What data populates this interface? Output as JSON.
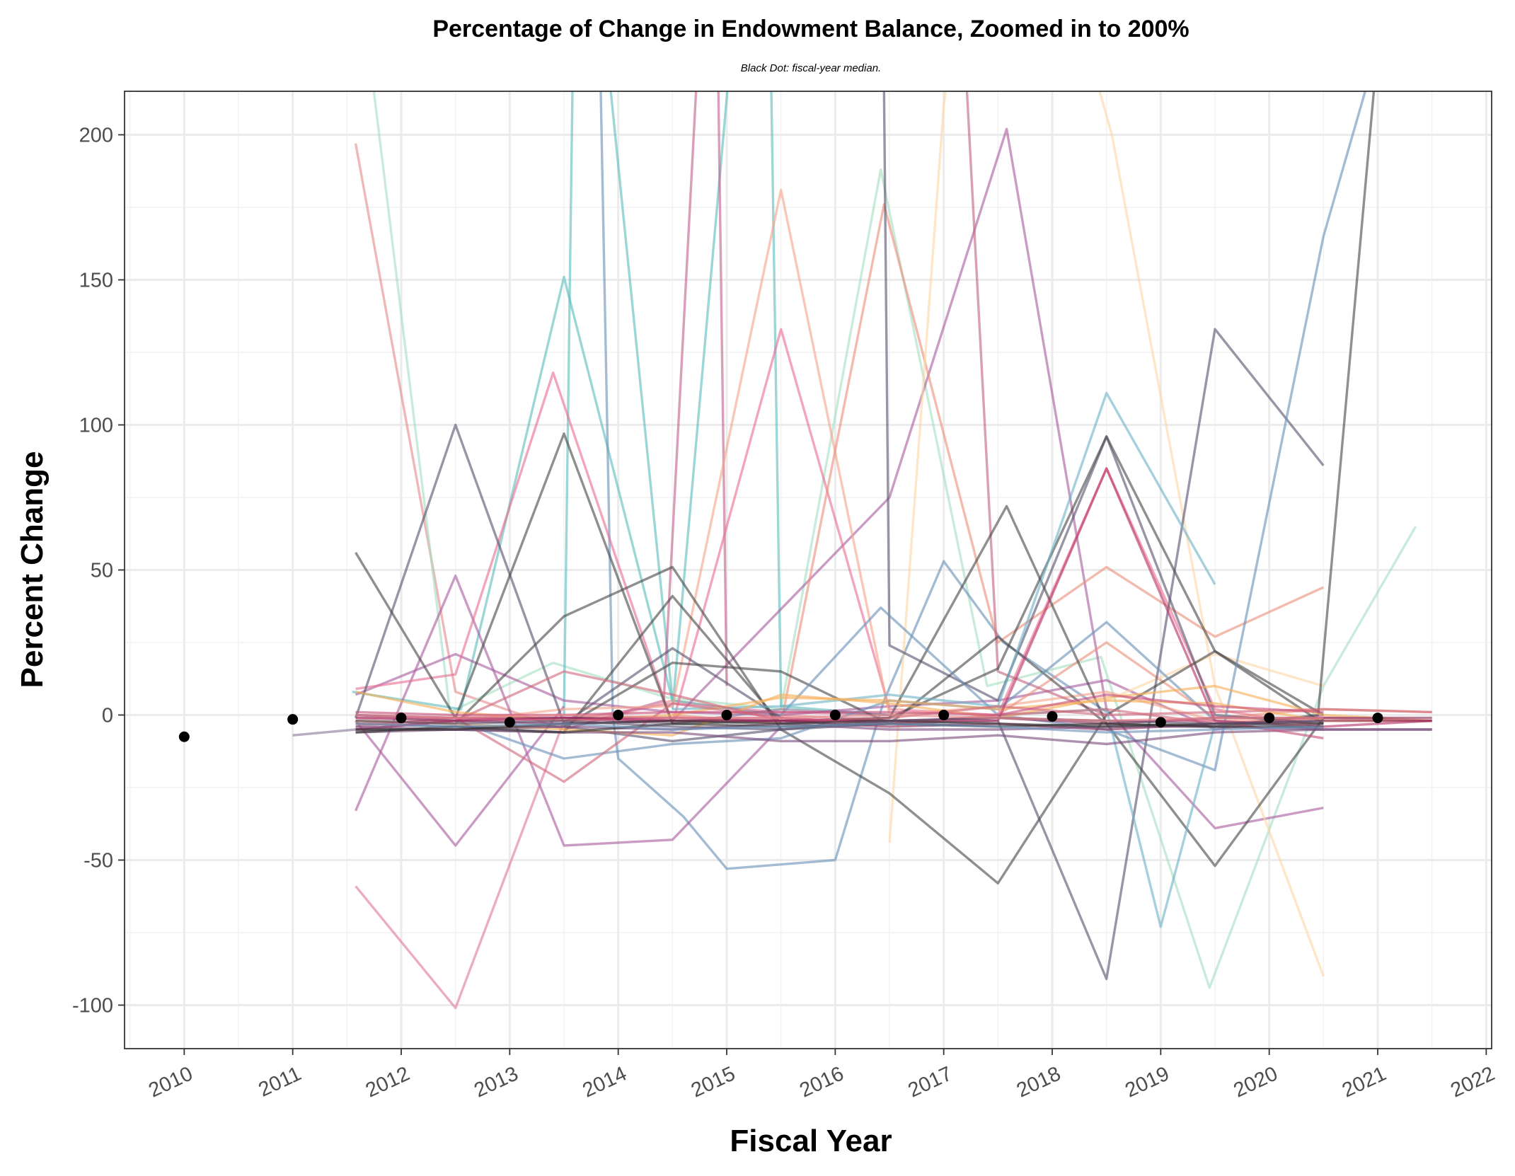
{
  "chart_data": {
    "type": "line",
    "title": "Percentage of Change in Endowment Balance, Zoomed in to 200%",
    "subtitle": "Black Dot: fiscal-year median.",
    "xlabel": "Fiscal Year",
    "ylabel": "Percent Change",
    "xlim": [
      2009.45,
      2022.05
    ],
    "ylim": [
      -115,
      215
    ],
    "x_ticks": [
      "2010",
      "2011",
      "2012",
      "2013",
      "2014",
      "2015",
      "2016",
      "2017",
      "2018",
      "2019",
      "2020",
      "2021",
      "2022"
    ],
    "y_ticks": [
      "-100",
      "-50",
      "0",
      "50",
      "100",
      "150",
      "200"
    ],
    "grid": true,
    "legend": "none",
    "median": {
      "x": [
        2010,
        2011,
        2012,
        2013,
        2014,
        2015,
        2016,
        2017,
        2018,
        2019,
        2020,
        2021
      ],
      "values": [
        -7.5,
        -1.5,
        -1,
        -2.5,
        0,
        0,
        0,
        0,
        -0.5,
        -2.5,
        -1,
        -1
      ]
    },
    "series": [
      {
        "color": "#e78a8e",
        "x": [
          2011.58,
          2012.5,
          2013.5,
          2014.5,
          2015.5,
          2016.5
        ],
        "values": [
          197,
          8,
          -5,
          5,
          0,
          -2
        ]
      },
      {
        "color": "#a8dfc3",
        "x": [
          2011.6,
          2012.45,
          2013.4,
          2014.45,
          2015.5,
          2016.42,
          2017.4,
          2018.45,
          2019.45,
          2020.5,
          2021.35
        ],
        "values": [
          260,
          1,
          18,
          6,
          2,
          188,
          10,
          20,
          -94,
          10,
          65
        ]
      },
      {
        "color": "#5fbdbd",
        "x": [
          2011.55,
          2012.55,
          2013.5,
          2014.5,
          2015.5
        ],
        "values": [
          8,
          2,
          151,
          5,
          0
        ]
      },
      {
        "color": "#5fbdbd",
        "x": [
          2013.5,
          2013.62,
          2014.5
        ],
        "values": [
          0,
          330,
          5
        ]
      },
      {
        "color": "#5fbdbd",
        "x": [
          2014.5,
          2015.35,
          2015.5,
          2016.5
        ],
        "values": [
          2,
          360,
          3,
          0
        ]
      },
      {
        "color": "#6b93b9",
        "x": [
          2013.78,
          2013.95,
          2014.0,
          2014.6,
          2015.0,
          2016.0,
          2016.45,
          2017.0,
          2017.55,
          2018.5
        ],
        "values": [
          330,
          0,
          -15,
          -35,
          -53,
          -50,
          5,
          53,
          25,
          1
        ]
      },
      {
        "color": "#de7b9a",
        "x": [
          2011.58,
          2012.5,
          2013.5,
          2014.5,
          2015.5,
          2016.5
        ],
        "values": [
          -59,
          -101,
          -2,
          4,
          1,
          0
        ]
      },
      {
        "color": "#a95f9f",
        "x": [
          2011.58,
          2012.5,
          2013.5,
          2014.5,
          2015.5
        ],
        "values": [
          -33,
          48,
          -45,
          -43,
          -4
        ]
      },
      {
        "color": "#a95f9f",
        "x": [
          2011.58,
          2012.5,
          2013.5
        ],
        "values": [
          -2,
          -45,
          3
        ]
      },
      {
        "color": "#a95f9f",
        "x": [
          2013.5,
          2014.5,
          2016.5,
          2017.58,
          2018.5,
          2019.5,
          2020.5
        ],
        "values": [
          -1,
          -2,
          75,
          202,
          2,
          -39,
          -32
        ]
      },
      {
        "color": "#a95f9f",
        "x": [
          2011.58,
          2012.5,
          2013.5,
          2014.5,
          2015.5,
          2016.5,
          2017.5,
          2018.5,
          2019.5,
          2020.5
        ],
        "values": [
          7,
          21,
          5,
          1,
          0,
          3,
          5,
          12,
          -5,
          0
        ]
      },
      {
        "color": "#c2628f",
        "x": [
          2013.5,
          2014.42,
          2014.88,
          2015.0
        ],
        "values": [
          -5,
          5,
          330,
          10
        ]
      },
      {
        "color": "#e87093",
        "x": [
          2011.58,
          2012.5,
          2013.4,
          2014.5,
          2015.5,
          2016.5,
          2017.5,
          2018.5,
          2019.5,
          2020.5
        ],
        "values": [
          9,
          14,
          118,
          -3,
          133,
          2,
          0,
          85,
          2,
          -4
        ]
      },
      {
        "color": "#f5a58b",
        "x": [
          2012.5,
          2013.5,
          2014.5,
          2015.5,
          2016.5,
          2017.5,
          2018.5,
          2019.5,
          2020.5
        ],
        "values": [
          -2,
          2,
          3,
          181,
          0,
          3,
          8,
          -2,
          -1
        ]
      },
      {
        "color": "#ec8f7d",
        "x": [
          2014.5,
          2015.5,
          2016.45,
          2017.5,
          2018.5,
          2019.5,
          2020.5
        ],
        "values": [
          0,
          -3,
          176,
          25,
          51,
          27,
          44
        ]
      },
      {
        "color": "#ec8f7d",
        "x": [
          2017.5,
          2018.5,
          2019.5,
          2020.5,
          2021.5
        ],
        "values": [
          0,
          25,
          -1,
          2,
          1
        ]
      },
      {
        "color": "#fdd6a8",
        "x": [
          2016.5,
          2017.0,
          2017.4
        ],
        "values": [
          -44,
          210,
          330
        ]
      },
      {
        "color": "#fdd6a8",
        "x": [
          2018.4,
          2018.55,
          2019.5,
          2020.5
        ],
        "values": [
          220,
          200,
          10,
          -90
        ]
      },
      {
        "color": "#fdd6a8",
        "x": [
          2018.5,
          2019.5,
          2020.5
        ],
        "values": [
          5,
          21,
          10
        ]
      },
      {
        "color": "#c0667f",
        "x": [
          2017.05,
          2017.5,
          2018.5
        ],
        "values": [
          330,
          15,
          0
        ]
      },
      {
        "color": "#5a5470",
        "x": [
          2011.58,
          2012.5,
          2013.5,
          2014.5,
          2015.5
        ],
        "values": [
          -1,
          100,
          -3,
          23,
          -1
        ]
      },
      {
        "color": "#5a5470",
        "x": [
          2016.42,
          2016.5,
          2017.5,
          2018.5,
          2019.5,
          2020.5
        ],
        "values": [
          330,
          24,
          5,
          96,
          0,
          -3
        ]
      },
      {
        "color": "#5a5470",
        "x": [
          2011.58,
          2012.5,
          2013.5,
          2014.5,
          2015.5,
          2016.5,
          2017.5,
          2018.5,
          2019.5,
          2020.5
        ],
        "values": [
          -3,
          -4,
          -4,
          -9,
          -5,
          -3,
          -2,
          -91,
          133,
          86
        ]
      },
      {
        "color": "#8a7a99",
        "x": [
          2011.0,
          2011.58,
          2012.5,
          2013.5,
          2014.5,
          2015.5,
          2016.5
        ],
        "values": [
          -7,
          -5,
          -2,
          -1,
          -3,
          2,
          0
        ]
      },
      {
        "color": "#4a4a4a",
        "x": [
          2011.58,
          2012.5,
          2013.5,
          2014.5,
          2015.5,
          2016.5,
          2017.58,
          2018.5,
          2019.5,
          2020.5
        ],
        "values": [
          56,
          -1,
          97,
          -3,
          -2,
          -1,
          72,
          -3,
          -52,
          -1
        ]
      },
      {
        "color": "#4a4a4a",
        "x": [
          2011.58,
          2012.5,
          2013.5,
          2014.5,
          2015.5,
          2016.5,
          2017.5,
          2018.5,
          2019.5,
          2020.5
        ],
        "values": [
          -2,
          -3,
          34,
          51,
          -5,
          -27,
          -58,
          0,
          22,
          0
        ]
      },
      {
        "color": "#4a4a4a",
        "x": [
          2011.58,
          2012.5,
          2013.5,
          2014.5,
          2015.5,
          2016.5,
          2017.5,
          2018.5,
          2019.5,
          2020.5
        ],
        "values": [
          -5,
          -5,
          -6,
          41,
          -3,
          -1,
          16,
          96,
          22,
          -3
        ]
      },
      {
        "color": "#4a4a4a",
        "x": [
          2013.5,
          2014.5,
          2015.5,
          2016.5,
          2017.5,
          2018.5,
          2019.5,
          2020.45,
          2021.0
        ],
        "values": [
          -4,
          18,
          15,
          -3,
          27,
          -3,
          -4,
          0,
          230
        ]
      },
      {
        "color": "#6b93b9",
        "x": [
          2015.5,
          2016.42,
          2017.5,
          2018.5,
          2019.5,
          2020.5,
          2021.0
        ],
        "values": [
          0,
          37,
          0,
          -5,
          -19,
          165,
          230
        ]
      },
      {
        "color": "#6b93b9",
        "x": [
          2011.58,
          2012.5,
          2013.5,
          2014.5,
          2015.5,
          2016.5,
          2017.5,
          2018.5,
          2019.5,
          2020.5
        ],
        "values": [
          0,
          -2,
          -15,
          -10,
          -8,
          5,
          2,
          32,
          -2,
          -5
        ]
      },
      {
        "color": "#6fb3c6",
        "x": [
          2014.5,
          2015.5,
          2016.5,
          2017.5,
          2018.5,
          2019.5
        ],
        "values": [
          2,
          3,
          7,
          3,
          111,
          45
        ]
      },
      {
        "color": "#6fb3c6",
        "x": [
          2017.5,
          2018.5,
          2019.0,
          2019.5
        ],
        "values": [
          0,
          2,
          -73,
          -3
        ]
      },
      {
        "color": "#f7b05a",
        "x": [
          2011.58,
          2012.5,
          2013.5,
          2014.5,
          2015.5,
          2016.5,
          2017.5,
          2018.5,
          2019.5,
          2020.5,
          2021.5
        ],
        "values": [
          -2,
          -3,
          -5,
          -7,
          7,
          4,
          -1,
          6,
          10,
          0,
          -2
        ]
      },
      {
        "color": "#f7b05a",
        "x": [
          2011.58,
          2012.5,
          2013.5,
          2014.5,
          2015.5,
          2016.5,
          2017.5,
          2018.5,
          2019.5,
          2020.5,
          2021.5
        ],
        "values": [
          8,
          1,
          -2,
          0,
          6,
          5,
          2,
          5,
          4,
          -2,
          -2
        ]
      },
      {
        "color": "#d06b7c",
        "x": [
          2011.58,
          2012.5,
          2013.5,
          2014.5,
          2015.5,
          2016.5,
          2017.5,
          2018.5,
          2019.5,
          2020.5,
          2021.5
        ],
        "values": [
          -3,
          -2,
          15,
          7,
          -2,
          -1,
          3,
          0,
          1,
          2,
          1
        ]
      },
      {
        "color": "#d06b7c",
        "x": [
          2011.58,
          2012.5,
          2013.5,
          2014.5,
          2015.5,
          2016.5,
          2017.5,
          2018.5,
          2019.5,
          2020.5,
          2021.5
        ],
        "values": [
          -4,
          -1,
          -23,
          4,
          -1,
          -3,
          0,
          2,
          -3,
          -1,
          -2
        ]
      },
      {
        "color": "#b8336a",
        "x": [
          2011.58,
          2012.5,
          2013.5,
          2014.5,
          2015.5,
          2016.5,
          2017.5,
          2018.5,
          2019.5,
          2020.5,
          2021.5
        ],
        "values": [
          -5,
          -2,
          -1,
          -2,
          -2,
          -2,
          -2,
          85,
          -2,
          -4,
          -2
        ]
      },
      {
        "color": "#8c2d5a",
        "x": [
          2011.58,
          2012.5,
          2013.5,
          2014.5,
          2015.5,
          2016.5,
          2017.5,
          2018.5,
          2019.5,
          2020.5,
          2021.5
        ],
        "values": [
          -1,
          -2,
          -3,
          -2,
          -2,
          -4,
          -3,
          -5,
          -3,
          -2,
          -2
        ]
      },
      {
        "color": "#8c2d5a",
        "x": [
          2011.58,
          2012.5,
          2013.5,
          2014.5,
          2015.5,
          2016.5,
          2017.5,
          2018.5,
          2019.5,
          2020.5,
          2021.5
        ],
        "values": [
          0,
          -1,
          -1,
          -1,
          -2,
          -2,
          -1,
          -3,
          -1,
          -1,
          -1
        ]
      },
      {
        "color": "#7a4d7e",
        "x": [
          2011.58,
          2012.5,
          2013.5,
          2014.5,
          2015.5,
          2016.5,
          2017.5,
          2018.5,
          2019.5,
          2020.5,
          2021.5
        ],
        "values": [
          -4,
          -5,
          -6,
          -6,
          -9,
          -9,
          -7,
          -10,
          -6,
          -5,
          -5
        ]
      },
      {
        "color": "#7a4d7e",
        "x": [
          2011.58,
          2012.5,
          2013.5,
          2014.5,
          2015.5,
          2016.5,
          2017.5,
          2018.5,
          2019.5,
          2020.5,
          2021.5
        ],
        "values": [
          -6,
          -5,
          -4,
          -5,
          -3,
          -5,
          -5,
          -4,
          -4,
          -5,
          -5
        ]
      },
      {
        "color": "#c9507a",
        "x": [
          2011.58,
          2012.5,
          2013.5,
          2014.5,
          2015.5,
          2016.5,
          2017.5,
          2018.5,
          2019.5,
          2020.5
        ],
        "values": [
          1,
          0,
          0,
          1,
          1,
          1,
          0,
          7,
          3,
          1
        ]
      },
      {
        "color": "#c9507a",
        "x": [
          2011.58,
          2012.5,
          2013.5,
          2014.5,
          2015.5,
          2016.5,
          2017.5,
          2018.5,
          2019.5,
          2020.5
        ],
        "values": [
          -1,
          -1,
          -2,
          -1,
          -1,
          -3,
          -1,
          -2,
          -2,
          -8
        ]
      },
      {
        "color": "#333333",
        "x": [
          2011.58,
          2012.5,
          2013.5,
          2014.5,
          2015.5,
          2016.5,
          2017.5,
          2018.5,
          2019.5,
          2020.5
        ],
        "values": [
          -5,
          -5,
          -3,
          -2,
          -3,
          -2,
          -3,
          -4,
          -3,
          -3
        ]
      },
      {
        "color": "#333333",
        "x": [
          2011.58,
          2012.5,
          2013.5,
          2014.5,
          2015.5,
          2016.5,
          2017.5,
          2018.5,
          2019.5,
          2020.5
        ],
        "values": [
          -6,
          -4,
          -6,
          -3,
          -4,
          -3,
          -4,
          -3,
          -4,
          -4
        ]
      },
      {
        "color": "#5a5470",
        "x": [
          2011.58,
          2012.5,
          2013.5,
          2014.5,
          2015.5,
          2016.5,
          2017.5,
          2018.5,
          2019.5,
          2020.5
        ],
        "values": [
          -2,
          -3,
          -2,
          -4,
          -5,
          -2,
          -1,
          -2,
          -3,
          -2
        ]
      },
      {
        "color": "#6b93b9",
        "x": [
          2011.58,
          2012.5,
          2013.5,
          2014.5,
          2015.5,
          2016.5,
          2017.5,
          2018.5,
          2019.5,
          2020.5
        ],
        "values": [
          -3,
          -4,
          -3,
          -5,
          -4,
          -3,
          -4,
          -6,
          -5,
          -4
        ]
      },
      {
        "color": "#e78a8e",
        "x": [
          2011.58,
          2012.5,
          2013.5,
          2014.5,
          2015.5,
          2016.5,
          2017.5,
          2018.5,
          2019.5,
          2020.5
        ],
        "values": [
          0,
          -1,
          0,
          -1,
          -1,
          0,
          -1,
          -2,
          -1,
          -1
        ]
      }
    ]
  }
}
